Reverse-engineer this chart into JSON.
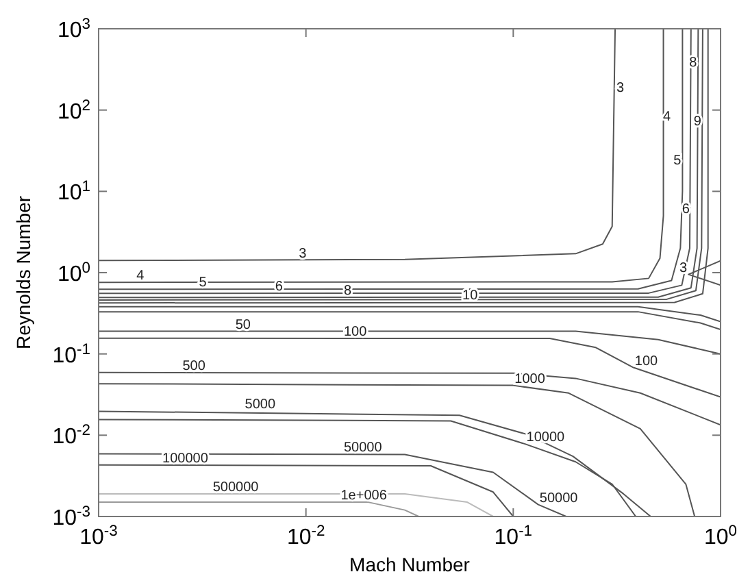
{
  "chart_data": {
    "type": "line",
    "xlabel": "Mach Number",
    "ylabel": "Reynolds Number",
    "log": "xy",
    "grid": false,
    "marker": "none",
    "line_style": "solid",
    "xlim": [
      0.001,
      1
    ],
    "ylim": [
      0.001,
      1000
    ],
    "xticks": [
      {
        "value": 0.001,
        "label": "10$^{-3}$"
      },
      {
        "value": 0.01,
        "label": "10$^{-2}$"
      },
      {
        "value": 0.1,
        "label": "10$^{-1}$"
      },
      {
        "value": 1,
        "label": "10$^{0}$"
      }
    ],
    "yticks": [
      {
        "value": 0.001,
        "label": "10$^{-3}$"
      },
      {
        "value": 0.01,
        "label": "10$^{-2}$"
      },
      {
        "value": 0.1,
        "label": "10$^{-1}$"
      },
      {
        "value": 1,
        "label": "10$^{0}$"
      },
      {
        "value": 10,
        "label": "10$^{1}$"
      },
      {
        "value": 100,
        "label": "10$^{2}$"
      },
      {
        "value": 1000,
        "label": "10$^{3}$"
      }
    ],
    "series": [
      {
        "color": "#555555",
        "x": [
          0.001,
          0.03,
          0.2,
          0.27,
          0.3,
          0.31
        ],
        "values": [
          1.41,
          1.45,
          1.71,
          2.25,
          3.7,
          1000
        ]
      },
      {
        "color": "#555555",
        "x": [
          1,
          0.7,
          1
        ],
        "values": [
          1.4,
          0.95,
          0.7
        ]
      },
      {
        "color": "#555555",
        "x": [
          0.001,
          0.3,
          0.45,
          0.51,
          0.53,
          0.53
        ],
        "values": [
          0.76,
          0.77,
          0.85,
          1.5,
          5,
          1000
        ]
      },
      {
        "color": "#555555",
        "x": [
          0.001,
          0.4,
          0.58,
          0.64,
          0.655,
          0.655
        ],
        "values": [
          0.625,
          0.63,
          0.8,
          2,
          10,
          1000
        ]
      },
      {
        "color": "#555555",
        "x": [
          0.001,
          0.45,
          0.65,
          0.71,
          0.72
        ],
        "values": [
          0.556,
          0.56,
          0.7,
          2,
          1000
        ]
      },
      {
        "color": "#555555",
        "x": [
          0.001,
          0.5,
          0.72,
          0.77,
          0.78
        ],
        "values": [
          0.495,
          0.5,
          0.65,
          2,
          1000
        ]
      },
      {
        "color": "#555555",
        "x": [
          0.001,
          0.55,
          0.76,
          0.81,
          0.82
        ],
        "values": [
          0.46,
          0.47,
          0.6,
          2,
          1000
        ]
      },
      {
        "color": "#555555",
        "x": [
          0.001,
          0.6,
          0.82,
          0.87,
          0.87
        ],
        "values": [
          0.424,
          0.43,
          0.55,
          2,
          1000
        ]
      },
      {
        "color": "#555555",
        "x": [
          0.001,
          0.4,
          0.8,
          1
        ],
        "values": [
          0.38,
          0.38,
          0.3,
          0.25
        ]
      },
      {
        "color": "#555555",
        "x": [
          0.001,
          0.4,
          0.8,
          1
        ],
        "values": [
          0.33,
          0.33,
          0.24,
          0.2
        ]
      },
      {
        "color": "#555555",
        "x": [
          0.001,
          0.2,
          0.5,
          1
        ],
        "values": [
          0.19,
          0.19,
          0.15,
          0.1
        ]
      },
      {
        "color": "#555555",
        "x": [
          0.001,
          0.15,
          0.25,
          0.38,
          1
        ],
        "values": [
          0.156,
          0.155,
          0.12,
          0.068,
          0.0295
        ]
      },
      {
        "color": "#555555",
        "x": [
          0.001,
          0.1,
          0.2,
          0.41,
          1
        ],
        "values": [
          0.059,
          0.058,
          0.05,
          0.033,
          0.0134
        ]
      },
      {
        "color": "#555555",
        "x": [
          0.001,
          0.1,
          0.185,
          0.41,
          0.68,
          0.75
        ],
        "values": [
          0.043,
          0.041,
          0.033,
          0.012,
          0.0025,
          0.001
        ]
      },
      {
        "color": "#555555",
        "x": [
          0.001,
          0.055,
          0.117,
          0.194,
          0.34,
          0.46
        ],
        "values": [
          0.0197,
          0.0176,
          0.0102,
          0.0055,
          0.0019,
          0.001
        ]
      },
      {
        "color": "#555555",
        "x": [
          0.001,
          0.05,
          0.114,
          0.2,
          0.3,
          0.39
        ],
        "values": [
          0.0156,
          0.015,
          0.0078,
          0.0047,
          0.0025,
          0.001
        ]
      },
      {
        "color": "#555555",
        "x": [
          0.001,
          0.03,
          0.08,
          0.132,
          0.18
        ],
        "values": [
          0.0059,
          0.0058,
          0.0035,
          0.0014,
          0.001
        ]
      },
      {
        "color": "#555555",
        "x": [
          0.001,
          0.04,
          0.08,
          0.1
        ],
        "values": [
          0.0043,
          0.0042,
          0.002,
          0.001
        ]
      },
      {
        "color": "#bbbbbb",
        "x": [
          0.001,
          0.03,
          0.06,
          0.08
        ],
        "values": [
          0.0019,
          0.0019,
          0.0015,
          0.001
        ]
      },
      {
        "color": "#999999",
        "x": [
          0.001,
          0.02,
          0.03,
          0.035
        ],
        "values": [
          0.0015,
          0.0015,
          0.0012,
          0.001
        ]
      }
    ],
    "annotations": [
      {
        "text": "3",
        "x": 0.0091,
        "y": 1.41
      },
      {
        "text": "4",
        "x": 0.0015,
        "y": 0.76
      },
      {
        "text": "5",
        "x": 0.003,
        "y": 0.63
      },
      {
        "text": "6",
        "x": 0.007,
        "y": 0.556
      },
      {
        "text": "8",
        "x": 0.015,
        "y": 0.495
      },
      {
        "text": "10",
        "x": 0.056,
        "y": 0.43
      },
      {
        "text": "50",
        "x": 0.0045,
        "y": 0.19
      },
      {
        "text": "100",
        "x": 0.015,
        "y": 0.156
      },
      {
        "text": "500",
        "x": 0.0025,
        "y": 0.059
      },
      {
        "text": "5000",
        "x": 0.005,
        "y": 0.0197
      },
      {
        "text": "100000",
        "x": 0.002,
        "y": 0.0043
      },
      {
        "text": "50000",
        "x": 0.015,
        "y": 0.0059
      },
      {
        "text": "500000",
        "x": 0.0035,
        "y": 0.0019
      },
      {
        "text": "1e+006",
        "x": 0.0145,
        "y": 0.0015
      },
      {
        "text": "3",
        "x": 0.31,
        "y": 155
      },
      {
        "text": "4",
        "x": 0.52,
        "y": 69
      },
      {
        "text": "5",
        "x": 0.655,
        "y": 20
      },
      {
        "text": "6",
        "x": 0.72,
        "y": 5
      },
      {
        "text": "8",
        "x": 0.78,
        "y": 320
      },
      {
        "text": "9",
        "x": 0.82,
        "y": 60
      },
      {
        "text": "3",
        "x": 0.7,
        "y": 0.95
      },
      {
        "text": "100",
        "x": 0.38,
        "y": 0.068
      },
      {
        "text": "1000",
        "x": 0.1,
        "y": 0.041
      },
      {
        "text": "10000",
        "x": 0.114,
        "y": 0.0078
      },
      {
        "text": "50000",
        "x": 0.132,
        "y": 0.0014
      }
    ]
  }
}
